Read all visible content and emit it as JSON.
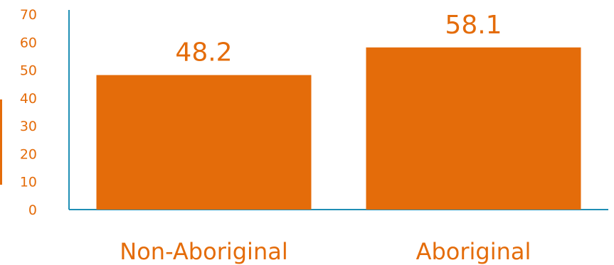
{
  "chart_data": {
    "type": "bar",
    "categories": [
      "Non-Aboriginal",
      "Aboriginal"
    ],
    "values": [
      48.2,
      58.1
    ],
    "data_labels": [
      "48.2",
      "58.1"
    ],
    "y_ticks": [
      "0",
      "10",
      "20",
      "30",
      "40",
      "50",
      "60",
      "70"
    ],
    "ylim": [
      0,
      70
    ],
    "title": "",
    "xlabel": "",
    "ylabel": "",
    "grid": false,
    "legend": "none"
  },
  "colors": {
    "bar": "#E46C0A",
    "text": "#E46C0A",
    "axis": "#1F8FB5"
  }
}
